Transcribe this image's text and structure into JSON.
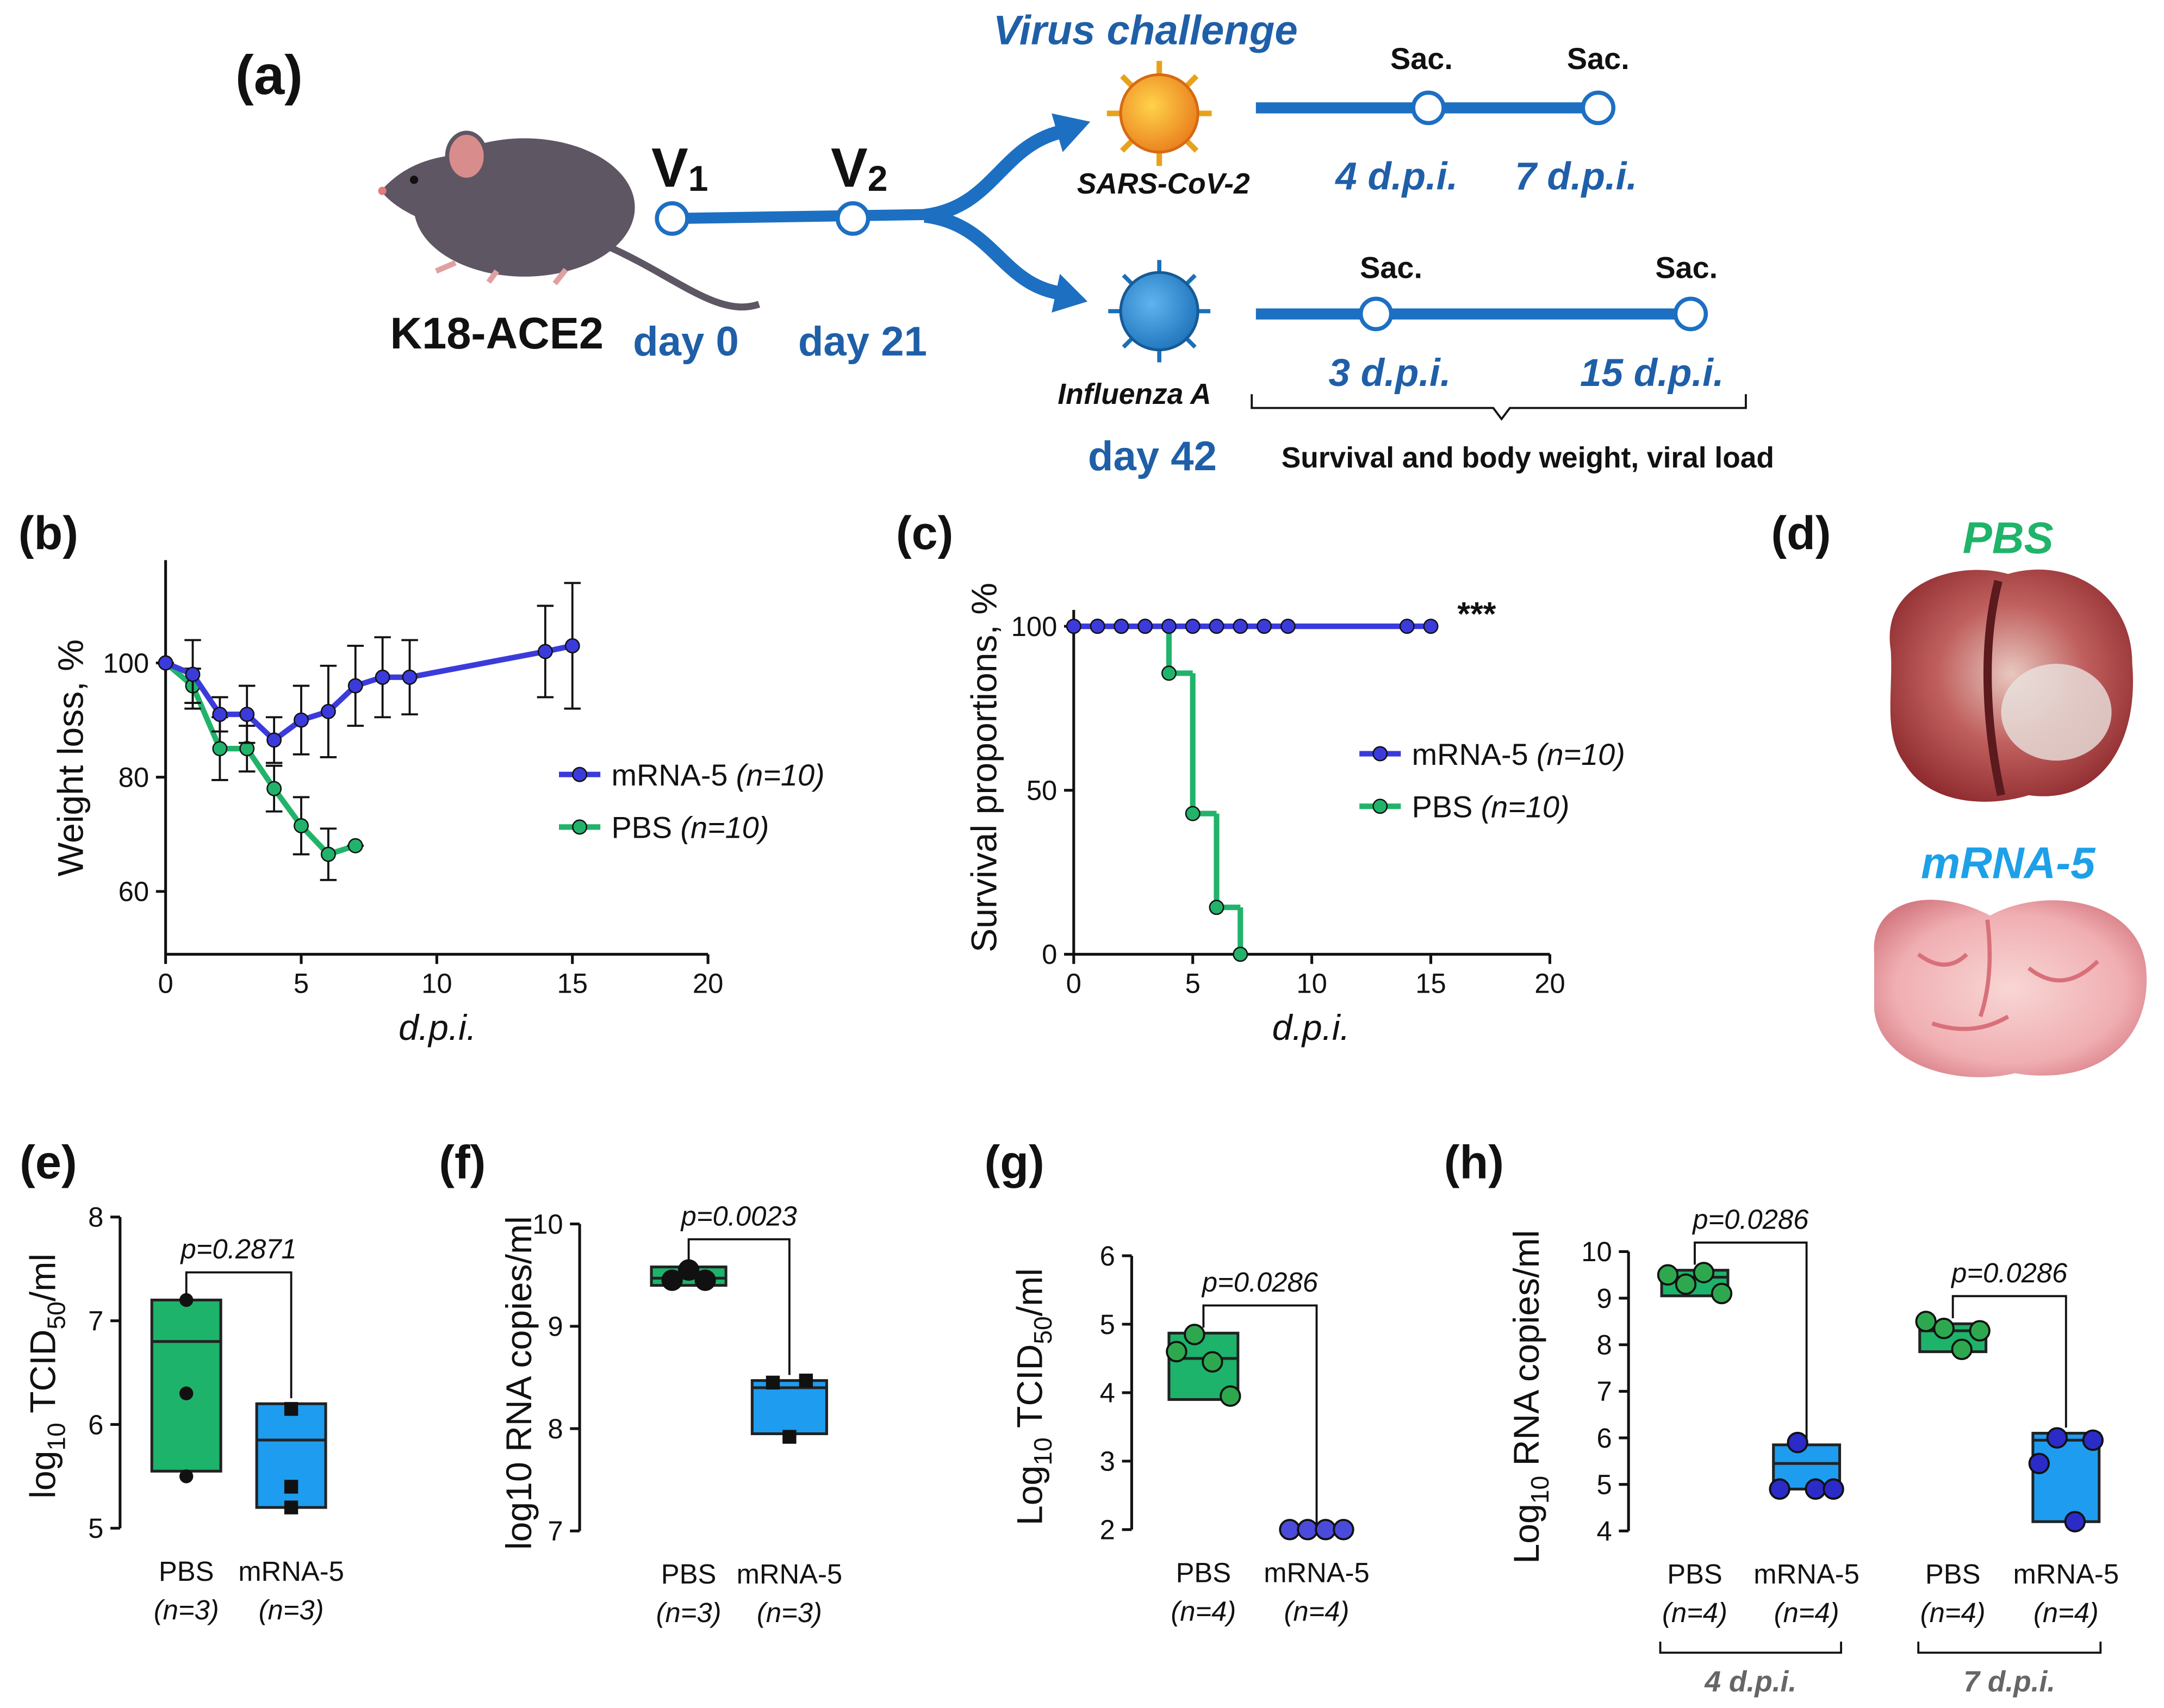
{
  "diagram": {
    "panel": "(a)",
    "animal": "K18-ACE2",
    "v1": [
      "V",
      "1"
    ],
    "v2": [
      "V",
      "2"
    ],
    "day0": "day 0",
    "day21": "day 21",
    "challenge": "Virus challenge",
    "virus1": "SARS-CoV-2",
    "virus2": "Influenza A",
    "day42": "day 42",
    "sars_timeline": {
      "sac": [
        "Sac.",
        "Sac."
      ],
      "dpi": [
        "4 d.p.i.",
        "7 d.p.i."
      ]
    },
    "flu_timeline": {
      "sac": [
        "Sac.",
        "Sac."
      ],
      "dpi": [
        "3 d.p.i.",
        "15 d.p.i."
      ]
    },
    "readout": "Survival and body weight, viral load"
  },
  "photo": {
    "panel": "(d)",
    "top": "PBS",
    "bottom": "mRNA-5"
  },
  "chart_data": [
    {
      "panel": "(b)",
      "type": "line",
      "xlabel": "d.p.i.",
      "ylabel": "Weight loss, %",
      "xlim": [
        0,
        20
      ],
      "xticks": [
        0,
        5,
        10,
        15,
        20
      ],
      "ylim": [
        49,
        118
      ],
      "yticks": [
        60,
        80,
        100
      ],
      "legend": "right",
      "series": [
        {
          "name": "mRNA-5",
          "n": "(n=10)",
          "color": "#3b3bdb",
          "x": [
            0,
            1,
            2,
            3,
            4,
            5,
            6,
            7,
            8,
            9,
            14,
            15
          ],
          "values": [
            100,
            98,
            91,
            91,
            86.5,
            90,
            91.5,
            96,
            97.5,
            97.5,
            102,
            103
          ],
          "errors": [
            0,
            6,
            3,
            5,
            4,
            6,
            8,
            7,
            7,
            6.5,
            8,
            11
          ]
        },
        {
          "name": "PBS",
          "n": "(n=10)",
          "color": "#22b36b",
          "x": [
            0,
            1,
            2,
            3,
            4,
            5,
            6,
            7
          ],
          "values": [
            100,
            96,
            85,
            85,
            78,
            71.5,
            66.5,
            68
          ],
          "errors": [
            0,
            3,
            5.5,
            4,
            4,
            5,
            4.5,
            0
          ]
        }
      ]
    },
    {
      "panel": "(c)",
      "type": "step",
      "xlabel": "d.p.i.",
      "ylabel": "Survival proportions, %",
      "xlim": [
        0,
        20
      ],
      "xticks": [
        0,
        5,
        10,
        15,
        20
      ],
      "ylim": [
        0,
        105
      ],
      "yticks": [
        0,
        50,
        100
      ],
      "legend": "right",
      "annotation": "***",
      "series": [
        {
          "name": "mRNA-5",
          "n": "(n=10)",
          "color": "#3b3bdb",
          "x": [
            0,
            1,
            2,
            3,
            4,
            5,
            6,
            7,
            8,
            9,
            14,
            15
          ],
          "values": [
            100,
            100,
            100,
            100,
            100,
            100,
            100,
            100,
            100,
            100,
            100,
            100
          ]
        },
        {
          "name": "PBS",
          "n": "(n=10)",
          "color": "#22b36b",
          "x": [
            0,
            1,
            2,
            3,
            4,
            5,
            6,
            7
          ],
          "values": [
            100,
            100,
            100,
            100,
            85.7,
            42.9,
            14.3,
            0
          ]
        }
      ]
    },
    {
      "panel": "(e)",
      "type": "box",
      "ylabel": [
        "log",
        "10",
        " TCID",
        "50",
        "/ml"
      ],
      "ylim": [
        5,
        8
      ],
      "yticks": [
        5,
        6,
        7,
        8
      ],
      "categories": [
        "PBS",
        "mRNA-5"
      ],
      "n_labels": [
        "(n=3)",
        "(n=3)"
      ],
      "boxes": [
        {
          "min": 5.55,
          "median": 6.8,
          "max": 7.2,
          "points": [
            7.2,
            6.3,
            5.5
          ],
          "color": "#1db36a",
          "point_color": "#111",
          "marker": "circle"
        },
        {
          "min": 5.2,
          "median": 5.85,
          "max": 6.2,
          "points": [
            6.15,
            5.4,
            5.2
          ],
          "color": "#1e9cf0",
          "point_color": "#111",
          "marker": "square"
        }
      ],
      "annotations": [
        {
          "text": "p=0.2871",
          "between": [
            0,
            1
          ]
        }
      ]
    },
    {
      "panel": "(f)",
      "type": "box",
      "ylabel": [
        "log10 RNA copies/ml"
      ],
      "ylim": [
        7,
        10
      ],
      "yticks": [
        7,
        8,
        9,
        10
      ],
      "categories": [
        "PBS",
        "mRNA-5"
      ],
      "n_labels": [
        "(n=3)",
        "(n=3)"
      ],
      "boxes": [
        {
          "min": 9.4,
          "median": 9.47,
          "max": 9.58,
          "points": [
            9.45,
            9.55,
            9.45
          ],
          "color": "#1db36a",
          "point_color": "#111",
          "marker": "circle"
        },
        {
          "min": 7.95,
          "median": 8.4,
          "max": 8.47,
          "points": [
            8.45,
            7.92,
            8.47
          ],
          "color": "#1e9cf0",
          "point_color": "#111",
          "marker": "square"
        }
      ],
      "annotations": [
        {
          "text": "p=0.0023",
          "between": [
            0,
            1
          ]
        }
      ]
    },
    {
      "panel": "(g)",
      "type": "box",
      "ylabel": [
        "Log",
        "10",
        " TCID",
        "50",
        "/ml"
      ],
      "ylim": [
        2,
        6
      ],
      "yticks": [
        2,
        3,
        4,
        5,
        6
      ],
      "categories": [
        "PBS",
        "mRNA-5"
      ],
      "n_labels": [
        "(n=4)",
        "(n=4)"
      ],
      "boxes": [
        {
          "min": 3.9,
          "median": 4.5,
          "max": 4.87,
          "points": [
            4.6,
            4.85,
            4.45,
            3.95
          ],
          "color": "#1db36a",
          "point_color": "#2ea84f",
          "marker": "circle"
        },
        {
          "min": 2,
          "median": 2,
          "max": 2,
          "points": [
            2,
            2,
            2,
            2
          ],
          "color": "#1e9cf0",
          "point_color": "#4b4bdb",
          "marker": "circle"
        }
      ],
      "annotations": [
        {
          "text": "p=0.0286",
          "between": [
            0,
            1
          ]
        }
      ]
    },
    {
      "panel": "(h)",
      "type": "box",
      "ylabel": [
        "Log",
        "10",
        " RNA copies/ml"
      ],
      "ylim": [
        4,
        10
      ],
      "yticks": [
        4,
        5,
        6,
        7,
        8,
        9,
        10
      ],
      "categories": [
        "PBS",
        "mRNA-5",
        "PBS",
        "mRNA-5"
      ],
      "n_labels": [
        "(n=4)",
        "(n=4)",
        "(n=4)",
        "(n=4)"
      ],
      "boxes": [
        {
          "min": 9.05,
          "median": 9.45,
          "max": 9.6,
          "points": [
            9.5,
            9.3,
            9.55,
            9.1
          ],
          "color": "#1db36a",
          "point_color": "#2ea84f",
          "marker": "circle"
        },
        {
          "min": 4.9,
          "median": 5.45,
          "max": 5.85,
          "points": [
            4.9,
            5.9,
            4.9,
            4.9
          ],
          "color": "#1e9cf0",
          "point_color": "#2b2bc8",
          "marker": "circle"
        },
        {
          "min": 7.85,
          "median": 8.3,
          "max": 8.45,
          "points": [
            8.5,
            8.35,
            7.9,
            8.3
          ],
          "color": "#1db36a",
          "point_color": "#2ea84f",
          "marker": "circle"
        },
        {
          "min": 4.2,
          "median": 5.95,
          "max": 6.1,
          "points": [
            5.45,
            6.0,
            4.2,
            5.95
          ],
          "color": "#1e9cf0",
          "point_color": "#2b2bc8",
          "marker": "circle"
        }
      ],
      "annotations": [
        {
          "text": "p=0.0286",
          "between": [
            0,
            1
          ]
        },
        {
          "text": "p=0.0286",
          "between": [
            2,
            3
          ]
        }
      ],
      "groups": [
        {
          "label": "4 d.p.i.",
          "categories": [
            0,
            1
          ]
        },
        {
          "label": "7 d.p.i.",
          "categories": [
            2,
            3
          ]
        }
      ]
    }
  ]
}
